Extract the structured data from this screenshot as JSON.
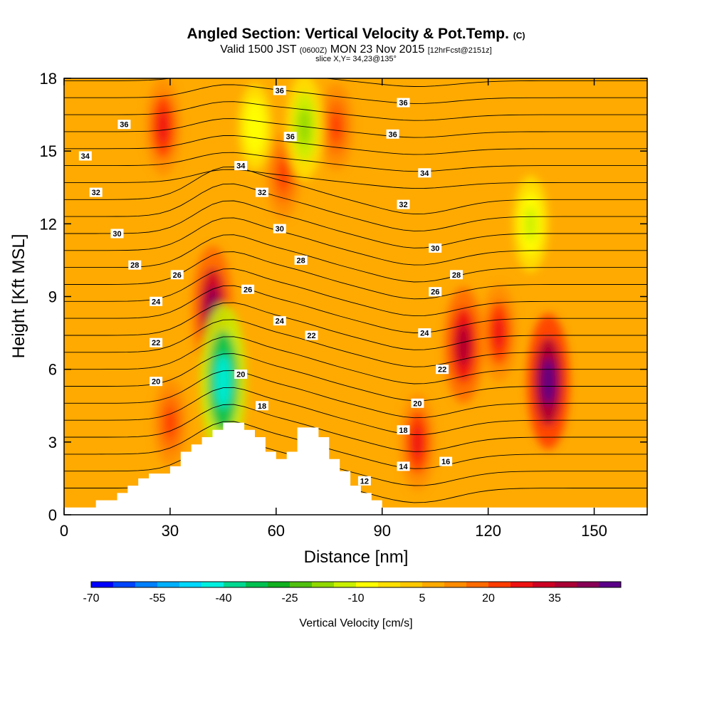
{
  "header": {
    "title": "Angled Section: Vertical Velocity & Pot.Temp.",
    "title_unit": "(C)",
    "valid_prefix": "Valid 1500 JST",
    "valid_utc": "(0600Z)",
    "valid_date": "MON 23 Nov 2015",
    "forecast": "[12hrFcst@2151z]",
    "slice": "slice X,Y= 34,23@135°"
  },
  "chart_data": {
    "type": "heatmap",
    "xlabel": "Distance [nm]",
    "ylabel": "Height [Kft MSL]",
    "xlim": [
      0,
      165
    ],
    "ylim": [
      0,
      18
    ],
    "x_ticks": [
      0,
      30,
      60,
      90,
      120,
      150
    ],
    "y_ticks": [
      0,
      3,
      6,
      9,
      12,
      15,
      18
    ],
    "grid": false,
    "colorbar": {
      "title": "Vertical Velocity [cm/s]",
      "range": [
        -70,
        50
      ],
      "step": 5,
      "tick_labels": [
        "-70",
        "-55",
        "-40",
        "-25",
        "-10",
        "5",
        "20",
        "35"
      ],
      "colors": [
        "#0000ff",
        "#0044ff",
        "#0080ff",
        "#00b0ff",
        "#00d8ff",
        "#00f0e0",
        "#00d890",
        "#00c050",
        "#10b020",
        "#50c010",
        "#90d800",
        "#c8f000",
        "#ffff00",
        "#ffe000",
        "#ffc800",
        "#ffaa00",
        "#ff8c00",
        "#ff6a00",
        "#ff3c00",
        "#ee1111",
        "#cc0022",
        "#aa0033",
        "#880055",
        "#5a0088"
      ]
    },
    "series": [
      {
        "name": "Vertical Velocity",
        "field": "color-fill contours, cm/s",
        "background": 5,
        "features": [
          {
            "x": 42,
            "y": 8.5,
            "value": 40
          },
          {
            "x": 45,
            "y": 5.5,
            "value": -45
          },
          {
            "x": 30,
            "y": 3.8,
            "value": 20
          },
          {
            "x": 113,
            "y": 7,
            "value": 35
          },
          {
            "x": 137,
            "y": 5.5,
            "value": 45
          },
          {
            "x": 100,
            "y": 3,
            "value": 25
          },
          {
            "x": 123,
            "y": 7.5,
            "value": 25
          },
          {
            "x": 28,
            "y": 16,
            "value": 25
          },
          {
            "x": 54,
            "y": 16,
            "value": -10
          },
          {
            "x": 62,
            "y": 14,
            "value": 20
          },
          {
            "x": 77,
            "y": 16,
            "value": 20
          },
          {
            "x": 68,
            "y": 16,
            "value": -20
          },
          {
            "x": 132,
            "y": 12,
            "value": -15
          }
        ]
      },
      {
        "name": "Pot.Temp.",
        "field": "contour lines, C",
        "contour_labels": [
          {
            "text": "36",
            "x": 61,
            "y": 17.5
          },
          {
            "text": "36",
            "x": 96,
            "y": 17
          },
          {
            "text": "36",
            "x": 17,
            "y": 16.1
          },
          {
            "text": "36",
            "x": 64,
            "y": 15.6
          },
          {
            "text": "36",
            "x": 93,
            "y": 15.7
          },
          {
            "text": "34",
            "x": 6,
            "y": 14.8
          },
          {
            "text": "34",
            "x": 50,
            "y": 14.4
          },
          {
            "text": "34",
            "x": 102,
            "y": 14.1
          },
          {
            "text": "32",
            "x": 9,
            "y": 13.3
          },
          {
            "text": "32",
            "x": 56,
            "y": 13.3
          },
          {
            "text": "32",
            "x": 96,
            "y": 12.8
          },
          {
            "text": "30",
            "x": 15,
            "y": 11.6
          },
          {
            "text": "30",
            "x": 61,
            "y": 11.8
          },
          {
            "text": "30",
            "x": 105,
            "y": 11
          },
          {
            "text": "28",
            "x": 20,
            "y": 10.3
          },
          {
            "text": "28",
            "x": 67,
            "y": 10.5
          },
          {
            "text": "28",
            "x": 111,
            "y": 9.9
          },
          {
            "text": "26",
            "x": 32,
            "y": 9.9
          },
          {
            "text": "26",
            "x": 52,
            "y": 9.3
          },
          {
            "text": "26",
            "x": 105,
            "y": 9.2
          },
          {
            "text": "24",
            "x": 26,
            "y": 8.8
          },
          {
            "text": "24",
            "x": 61,
            "y": 8
          },
          {
            "text": "24",
            "x": 102,
            "y": 7.5
          },
          {
            "text": "22",
            "x": 26,
            "y": 7.1
          },
          {
            "text": "22",
            "x": 70,
            "y": 7.4
          },
          {
            "text": "22",
            "x": 107,
            "y": 6
          }
        ]
      }
    ],
    "extra_labels": [
      {
        "text": "20",
        "x": 26,
        "y": 5.5
      },
      {
        "text": "20",
        "x": 50,
        "y": 5.8
      },
      {
        "text": "20",
        "x": 100,
        "y": 4.6
      },
      {
        "text": "18",
        "x": 56,
        "y": 4.5
      },
      {
        "text": "18",
        "x": 96,
        "y": 3.5
      },
      {
        "text": "16",
        "x": 108,
        "y": 2.2
      },
      {
        "text": "14",
        "x": 96,
        "y": 2
      },
      {
        "text": "12",
        "x": 85,
        "y": 1.4
      }
    ],
    "terrain": [
      [
        0,
        0.3
      ],
      [
        9,
        0.3
      ],
      [
        9,
        0.6
      ],
      [
        15,
        0.6
      ],
      [
        15,
        0.9
      ],
      [
        18,
        0.9
      ],
      [
        18,
        1.2
      ],
      [
        21,
        1.2
      ],
      [
        21,
        1.5
      ],
      [
        24,
        1.5
      ],
      [
        24,
        1.7
      ],
      [
        30,
        1.7
      ],
      [
        30,
        2
      ],
      [
        33,
        2
      ],
      [
        33,
        2.6
      ],
      [
        36,
        2.6
      ],
      [
        36,
        2.9
      ],
      [
        39,
        2.9
      ],
      [
        39,
        3.2
      ],
      [
        42,
        3.2
      ],
      [
        42,
        3.5
      ],
      [
        45,
        3.5
      ],
      [
        45,
        3.8
      ],
      [
        51,
        3.8
      ],
      [
        51,
        3.5
      ],
      [
        54,
        3.5
      ],
      [
        54,
        3.2
      ],
      [
        57,
        3.2
      ],
      [
        57,
        2.6
      ],
      [
        60,
        2.6
      ],
      [
        60,
        2.3
      ],
      [
        63,
        2.3
      ],
      [
        63,
        2.6
      ],
      [
        66,
        2.6
      ],
      [
        66,
        3.6
      ],
      [
        72,
        3.6
      ],
      [
        72,
        3.2
      ],
      [
        75,
        3.2
      ],
      [
        75,
        2.3
      ],
      [
        78,
        2.3
      ],
      [
        78,
        1.8
      ],
      [
        81,
        1.8
      ],
      [
        81,
        1.2
      ],
      [
        84,
        1.2
      ],
      [
        84,
        0.9
      ],
      [
        87,
        0.9
      ],
      [
        87,
        0.6
      ],
      [
        90,
        0.6
      ],
      [
        90,
        0.3
      ],
      [
        165,
        0.3
      ]
    ]
  }
}
